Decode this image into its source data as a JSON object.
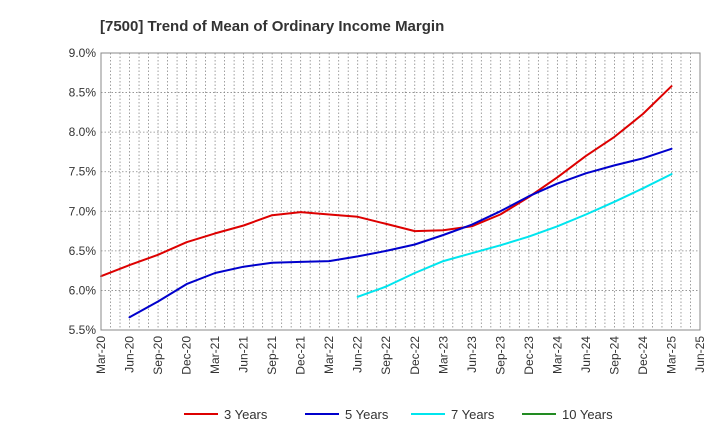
{
  "chart_data": {
    "type": "line",
    "title": "[7500]  Trend of Mean of Ordinary Income Margin",
    "xlabel": "",
    "ylabel": "",
    "x_tick_labels": [
      "Mar-20",
      "Jun-20",
      "Sep-20",
      "Dec-20",
      "Mar-21",
      "Jun-21",
      "Sep-21",
      "Dec-21",
      "Mar-22",
      "Jun-22",
      "Sep-22",
      "Dec-22",
      "Mar-23",
      "Jun-23",
      "Sep-23",
      "Dec-23",
      "Mar-24",
      "Jun-24",
      "Sep-24",
      "Dec-24",
      "Mar-25",
      "Jun-25"
    ],
    "y_ticks": [
      5.5,
      6.0,
      6.5,
      7.0,
      7.5,
      8.0,
      8.5,
      9.0
    ],
    "y_tick_labels": [
      "5.5%",
      "6.0%",
      "6.5%",
      "7.0%",
      "7.5%",
      "8.0%",
      "8.5%",
      "9.0%"
    ],
    "ylim": [
      5.5,
      9.0
    ],
    "grid": true,
    "legend_position": "bottom",
    "series": [
      {
        "name": "3 Years",
        "color": "#dd0000",
        "x": [
          "Mar-20",
          "Jun-20",
          "Sep-20",
          "Dec-20",
          "Mar-21",
          "Jun-21",
          "Sep-21",
          "Dec-21",
          "Mar-22",
          "Jun-22",
          "Sep-22",
          "Dec-22",
          "Mar-23",
          "Jun-23",
          "Sep-23",
          "Dec-23",
          "Mar-24",
          "Jun-24",
          "Sep-24",
          "Dec-24",
          "Mar-25"
        ],
        "values": [
          6.18,
          6.32,
          6.45,
          6.61,
          6.72,
          6.82,
          6.95,
          6.99,
          6.96,
          6.93,
          6.84,
          6.75,
          6.76,
          6.81,
          6.96,
          7.18,
          7.43,
          7.7,
          7.94,
          8.23,
          8.58
        ]
      },
      {
        "name": "5 Years",
        "color": "#0000cc",
        "x": [
          "Jun-20",
          "Sep-20",
          "Dec-20",
          "Mar-21",
          "Jun-21",
          "Sep-21",
          "Dec-21",
          "Mar-22",
          "Jun-22",
          "Sep-22",
          "Dec-22",
          "Mar-23",
          "Jun-23",
          "Sep-23",
          "Dec-23",
          "Mar-24",
          "Jun-24",
          "Sep-24",
          "Dec-24",
          "Mar-25"
        ],
        "values": [
          5.66,
          5.86,
          6.08,
          6.22,
          6.3,
          6.35,
          6.36,
          6.37,
          6.43,
          6.5,
          6.58,
          6.7,
          6.83,
          7.0,
          7.19,
          7.35,
          7.48,
          7.58,
          7.67,
          7.79
        ]
      },
      {
        "name": "7 Years",
        "color": "#00e5ee",
        "x": [
          "Jun-22",
          "Sep-22",
          "Dec-22",
          "Mar-23",
          "Jun-23",
          "Sep-23",
          "Dec-23",
          "Mar-24",
          "Jun-24",
          "Sep-24",
          "Dec-24",
          "Mar-25"
        ],
        "values": [
          5.92,
          6.05,
          6.22,
          6.37,
          6.47,
          6.57,
          6.68,
          6.81,
          6.96,
          7.12,
          7.29,
          7.47
        ]
      },
      {
        "name": "10 Years",
        "color": "#228b22",
        "x": [],
        "values": []
      }
    ]
  }
}
